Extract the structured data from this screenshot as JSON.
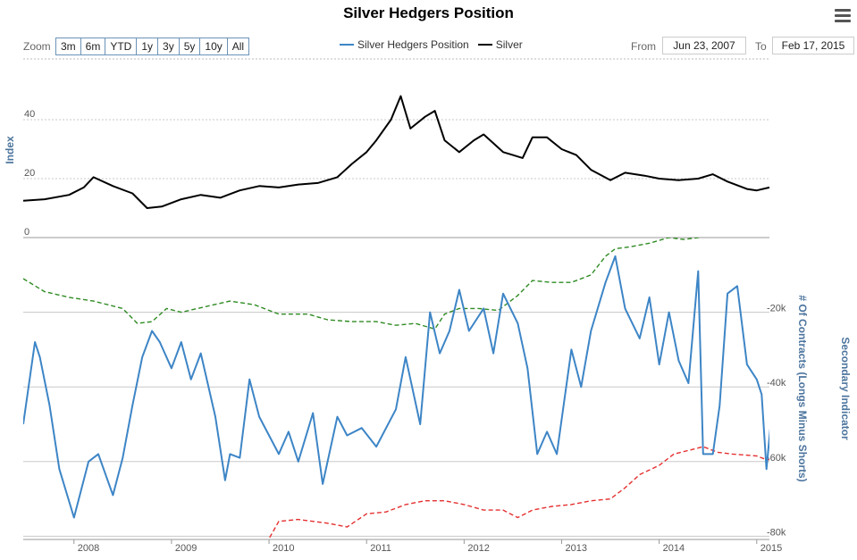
{
  "header": {
    "title": "Silver Hedgers Position"
  },
  "toolbar": {
    "zoom_label": "Zoom",
    "zoom_buttons": [
      "3m",
      "6m",
      "YTD",
      "1y",
      "3y",
      "5y",
      "10y",
      "All"
    ],
    "from_label": "From",
    "from_value": "Jun 23, 2007",
    "to_label": "To",
    "to_value": "Feb 17, 2015"
  },
  "legend": [
    {
      "label": "Silver Hedgers Position",
      "color": "#3d85c6"
    },
    {
      "label": "Silver",
      "color": "#000000"
    }
  ],
  "icons": {
    "menu": "hamburger-menu-icon"
  },
  "chart_data": {
    "type": "line",
    "title": "Silver Hedgers Position",
    "x_range": [
      "2007-06-23",
      "2015-02-17"
    ],
    "x_ticks": [
      "2008",
      "2009",
      "2010",
      "2011",
      "2012",
      "2013",
      "2014",
      "2015"
    ],
    "panels": [
      {
        "id": "silver",
        "ylabel": "Index",
        "y_ticks": [
          "0",
          "20",
          "40"
        ],
        "ylim": [
          0,
          50
        ],
        "series": [
          {
            "name": "Silver",
            "color": "#000000",
            "x": [
              2007.48,
              2007.7,
              2007.95,
              2008.1,
              2008.2,
              2008.4,
              2008.6,
              2008.75,
              2008.9,
              2009.1,
              2009.3,
              2009.5,
              2009.7,
              2009.9,
              2010.1,
              2010.3,
              2010.5,
              2010.7,
              2010.85,
              2011.0,
              2011.1,
              2011.25,
              2011.35,
              2011.45,
              2011.6,
              2011.7,
              2011.8,
              2011.95,
              2012.1,
              2012.2,
              2012.4,
              2012.5,
              2012.6,
              2012.7,
              2012.85,
              2013.0,
              2013.15,
              2013.3,
              2013.5,
              2013.65,
              2013.85,
              2014.0,
              2014.2,
              2014.4,
              2014.55,
              2014.7,
              2014.9,
              2015.0,
              2015.13
            ],
            "values": [
              12.5,
              13.0,
              14.5,
              17.0,
              20.5,
              17.5,
              15.0,
              10.0,
              10.5,
              13.0,
              14.5,
              13.5,
              16.0,
              17.5,
              17.0,
              18.0,
              18.5,
              20.5,
              25.0,
              29.0,
              33.0,
              40.0,
              48.0,
              37.0,
              41.0,
              43.0,
              33.0,
              29.0,
              33.0,
              35.0,
              29.0,
              28.0,
              27.0,
              34.0,
              34.0,
              30.0,
              28.0,
              23.0,
              19.5,
              22.0,
              21.0,
              20.0,
              19.5,
              20.0,
              21.5,
              19.0,
              16.5,
              16.0,
              17.0
            ]
          }
        ]
      },
      {
        "id": "contracts",
        "ylabel": "# Of Contracts (Longs Minus Shorts)",
        "ylabel2": "Secondary Indicator",
        "y_ticks": [
          "-20k",
          "-40k",
          "-60k",
          "-80k"
        ],
        "ylim": [
          -80000,
          0
        ],
        "series": [
          {
            "name": "Silver Hedgers Position",
            "color": "#3d85c6",
            "x": [
              2007.48,
              2007.6,
              2007.65,
              2007.75,
              2007.85,
              2008.0,
              2008.15,
              2008.25,
              2008.4,
              2008.5,
              2008.6,
              2008.7,
              2008.8,
              2008.88,
              2009.0,
              2009.1,
              2009.2,
              2009.3,
              2009.45,
              2009.55,
              2009.6,
              2009.7,
              2009.8,
              2009.9,
              2010.1,
              2010.2,
              2010.3,
              2010.45,
              2010.55,
              2010.7,
              2010.8,
              2010.95,
              2011.1,
              2011.3,
              2011.4,
              2011.55,
              2011.65,
              2011.75,
              2011.85,
              2011.95,
              2012.05,
              2012.2,
              2012.3,
              2012.4,
              2012.55,
              2012.65,
              2012.75,
              2012.85,
              2012.95,
              2013.1,
              2013.2,
              2013.3,
              2013.45,
              2013.55,
              2013.65,
              2013.8,
              2013.9,
              2014.0,
              2014.1,
              2014.2,
              2014.3,
              2014.4,
              2014.45,
              2014.55,
              2014.62,
              2014.7,
              2014.8,
              2014.9,
              2015.0,
              2015.05,
              2015.1,
              2015.15
            ],
            "values": [
              -50000,
              -28000,
              -32000,
              -45000,
              -62000,
              -75000,
              -60000,
              -58000,
              -69000,
              -59000,
              -45000,
              -32000,
              -25000,
              -28000,
              -35000,
              -28000,
              -38000,
              -31000,
              -48000,
              -65000,
              -58000,
              -59000,
              -38000,
              -48000,
              -58000,
              -52000,
              -60000,
              -47000,
              -66000,
              -48000,
              -53000,
              -51000,
              -56000,
              -46000,
              -32000,
              -50000,
              -20000,
              -31000,
              -25000,
              -14000,
              -25000,
              -19000,
              -31000,
              -15000,
              -23000,
              -35000,
              -58000,
              -52000,
              -58000,
              -30000,
              -40000,
              -25000,
              -12000,
              -5000,
              -19000,
              -27000,
              -16000,
              -34000,
              -20000,
              -33000,
              -39000,
              -9000,
              -58000,
              -58000,
              -45000,
              -15000,
              -13000,
              -34000,
              -38000,
              -42000,
              -62000,
              -48000
            ]
          },
          {
            "name": "",
            "color": "#2e8b22",
            "style": "dashed",
            "x": [
              2007.48,
              2007.7,
              2007.95,
              2008.2,
              2008.5,
              2008.65,
              2008.8,
              2008.95,
              2009.1,
              2009.35,
              2009.6,
              2009.85,
              2010.1,
              2010.4,
              2010.6,
              2010.85,
              2011.1,
              2011.3,
              2011.5,
              2011.7,
              2011.8,
              2011.95,
              2012.15,
              2012.35,
              2012.55,
              2012.7,
              2012.9,
              2013.1,
              2013.3,
              2013.45,
              2013.55,
              2013.7,
              2013.9,
              2014.1,
              2014.25,
              2014.4,
              2014.5
            ],
            "values": [
              -11000,
              -14500,
              -16000,
              -17000,
              -19000,
              -23000,
              -22500,
              -19000,
              -20000,
              -18500,
              -17000,
              -18000,
              -20500,
              -20500,
              -22000,
              -22500,
              -22500,
              -23500,
              -23000,
              -24500,
              -20500,
              -19000,
              -19000,
              -19500,
              -15500,
              -11500,
              -12000,
              -12000,
              -10000,
              -5000,
              -3000,
              -2500,
              -1500,
              0,
              -500,
              0,
              1500
            ]
          },
          {
            "name": "",
            "color": "#e53030",
            "style": "dashed",
            "x": [
              2009.97,
              2010.1,
              2010.3,
              2010.6,
              2010.8,
              2011.0,
              2011.2,
              2011.4,
              2011.6,
              2011.8,
              2012.0,
              2012.2,
              2012.4,
              2012.55,
              2012.7,
              2012.9,
              2013.1,
              2013.3,
              2013.5,
              2013.65,
              2013.8,
              2014.0,
              2014.15,
              2014.3,
              2014.45,
              2014.6,
              2014.75,
              2015.0,
              2015.1,
              2015.15
            ],
            "values": [
              -82000,
              -76000,
              -75500,
              -76500,
              -77500,
              -74000,
              -73500,
              -71500,
              -70500,
              -70500,
              -71500,
              -73000,
              -73000,
              -75000,
              -73000,
              -72000,
              -71500,
              -70500,
              -70000,
              -67000,
              -63500,
              -61000,
              -58000,
              -57000,
              -56000,
              -57500,
              -58000,
              -58500,
              -59500,
              -59500
            ]
          }
        ]
      }
    ],
    "grid": true
  }
}
